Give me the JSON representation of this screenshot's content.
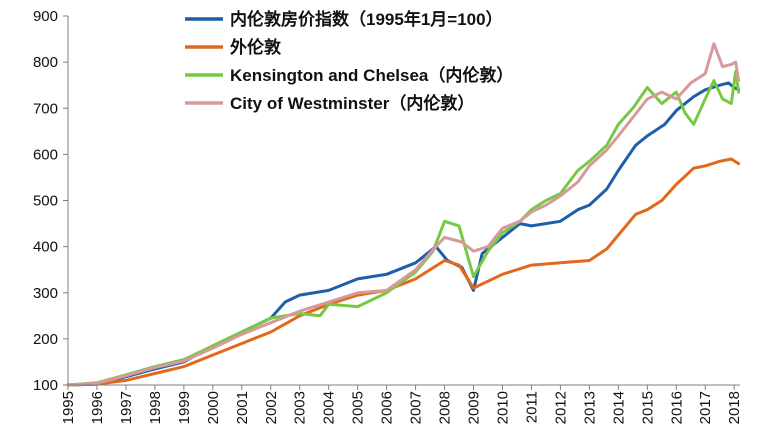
{
  "chart_data": {
    "type": "line",
    "title": "",
    "xlabel": "",
    "ylabel": "",
    "ylim": [
      100,
      900
    ],
    "yticks": [
      100,
      200,
      300,
      400,
      500,
      600,
      700,
      800,
      900
    ],
    "xticks": [
      1995,
      1996,
      1997,
      1998,
      1999,
      2000,
      2001,
      2002,
      2003,
      2004,
      2005,
      2006,
      2007,
      2008,
      2009,
      2010,
      2011,
      2012,
      2013,
      2014,
      2015,
      2016,
      2017,
      2018
    ],
    "xlim": [
      1995,
      2018.2
    ],
    "grid": false,
    "legend_position": "top-left",
    "series": [
      {
        "name": "内伦敦房价指数（1995年1月=100）",
        "color": "#1f5fa8",
        "points": [
          [
            1995,
            100
          ],
          [
            1996,
            102
          ],
          [
            1997,
            118
          ],
          [
            1998,
            135
          ],
          [
            1999,
            150
          ],
          [
            2000,
            185
          ],
          [
            2001,
            215
          ],
          [
            2002,
            245
          ],
          [
            2002.5,
            280
          ],
          [
            2003,
            295
          ],
          [
            2004,
            305
          ],
          [
            2005,
            330
          ],
          [
            2006,
            340
          ],
          [
            2007,
            365
          ],
          [
            2007.7,
            400
          ],
          [
            2008.1,
            370
          ],
          [
            2008.6,
            355
          ],
          [
            2009.0,
            305
          ],
          [
            2009.3,
            385
          ],
          [
            2010,
            420
          ],
          [
            2010.6,
            450
          ],
          [
            2011,
            445
          ],
          [
            2012,
            455
          ],
          [
            2012.6,
            480
          ],
          [
            2013,
            490
          ],
          [
            2013.6,
            525
          ],
          [
            2014,
            565
          ],
          [
            2014.6,
            620
          ],
          [
            2015,
            640
          ],
          [
            2015.6,
            665
          ],
          [
            2016,
            695
          ],
          [
            2016.6,
            725
          ],
          [
            2017,
            740
          ],
          [
            2017.5,
            750
          ],
          [
            2017.8,
            755
          ],
          [
            2018,
            745
          ],
          [
            2018.15,
            740
          ]
        ]
      },
      {
        "name": "外伦敦",
        "color": "#e2691b",
        "points": [
          [
            1995,
            100
          ],
          [
            1996,
            102
          ],
          [
            1997,
            110
          ],
          [
            1998,
            125
          ],
          [
            1999,
            140
          ],
          [
            2000,
            165
          ],
          [
            2001,
            190
          ],
          [
            2002,
            215
          ],
          [
            2003,
            250
          ],
          [
            2004,
            275
          ],
          [
            2005,
            295
          ],
          [
            2006,
            305
          ],
          [
            2007,
            330
          ],
          [
            2008,
            370
          ],
          [
            2008.5,
            360
          ],
          [
            2009,
            310
          ],
          [
            2009.5,
            325
          ],
          [
            2010,
            340
          ],
          [
            2011,
            360
          ],
          [
            2012,
            365
          ],
          [
            2013,
            370
          ],
          [
            2013.6,
            395
          ],
          [
            2014,
            425
          ],
          [
            2014.6,
            470
          ],
          [
            2015,
            480
          ],
          [
            2015.5,
            500
          ],
          [
            2016,
            535
          ],
          [
            2016.6,
            570
          ],
          [
            2017,
            575
          ],
          [
            2017.5,
            585
          ],
          [
            2017.9,
            590
          ],
          [
            2018.15,
            580
          ]
        ]
      },
      {
        "name": "Kensington and Chelsea（内伦敦）",
        "color": "#77c944",
        "points": [
          [
            1995,
            100
          ],
          [
            1996,
            105
          ],
          [
            1997,
            122
          ],
          [
            1998,
            140
          ],
          [
            1999,
            155
          ],
          [
            2000,
            185
          ],
          [
            2001,
            215
          ],
          [
            2002,
            245
          ],
          [
            2003,
            255
          ],
          [
            2003.7,
            250
          ],
          [
            2004,
            275
          ],
          [
            2005,
            270
          ],
          [
            2006,
            300
          ],
          [
            2007,
            345
          ],
          [
            2007.6,
            390
          ],
          [
            2008,
            455
          ],
          [
            2008.5,
            445
          ],
          [
            2009,
            335
          ],
          [
            2009.5,
            390
          ],
          [
            2010,
            430
          ],
          [
            2010.6,
            455
          ],
          [
            2011,
            480
          ],
          [
            2011.5,
            500
          ],
          [
            2012,
            515
          ],
          [
            2012.6,
            565
          ],
          [
            2013,
            585
          ],
          [
            2013.6,
            620
          ],
          [
            2014,
            665
          ],
          [
            2014.5,
            700
          ],
          [
            2015,
            745
          ],
          [
            2015.5,
            710
          ],
          [
            2016,
            735
          ],
          [
            2016.3,
            690
          ],
          [
            2016.6,
            665
          ],
          [
            2017,
            720
          ],
          [
            2017.3,
            760
          ],
          [
            2017.6,
            720
          ],
          [
            2017.9,
            710
          ],
          [
            2018.05,
            780
          ],
          [
            2018.15,
            735
          ]
        ]
      },
      {
        "name": "City of Westminster（内伦敦）",
        "color": "#d79a9b",
        "points": [
          [
            1995,
            100
          ],
          [
            1996,
            104
          ],
          [
            1997,
            120
          ],
          [
            1998,
            138
          ],
          [
            1999,
            152
          ],
          [
            2000,
            180
          ],
          [
            2001,
            210
          ],
          [
            2002,
            235
          ],
          [
            2003,
            260
          ],
          [
            2004,
            280
          ],
          [
            2005,
            300
          ],
          [
            2006,
            305
          ],
          [
            2007,
            350
          ],
          [
            2007.7,
            400
          ],
          [
            2008,
            420
          ],
          [
            2008.6,
            410
          ],
          [
            2009,
            390
          ],
          [
            2009.5,
            400
          ],
          [
            2010,
            440
          ],
          [
            2010.6,
            455
          ],
          [
            2011,
            475
          ],
          [
            2011.5,
            490
          ],
          [
            2012,
            510
          ],
          [
            2012.6,
            540
          ],
          [
            2013,
            575
          ],
          [
            2013.6,
            610
          ],
          [
            2014,
            640
          ],
          [
            2014.5,
            680
          ],
          [
            2015,
            720
          ],
          [
            2015.5,
            735
          ],
          [
            2016,
            720
          ],
          [
            2016.5,
            755
          ],
          [
            2017,
            775
          ],
          [
            2017.3,
            840
          ],
          [
            2017.6,
            790
          ],
          [
            2017.9,
            795
          ],
          [
            2018.05,
            800
          ],
          [
            2018.15,
            760
          ]
        ]
      }
    ]
  }
}
